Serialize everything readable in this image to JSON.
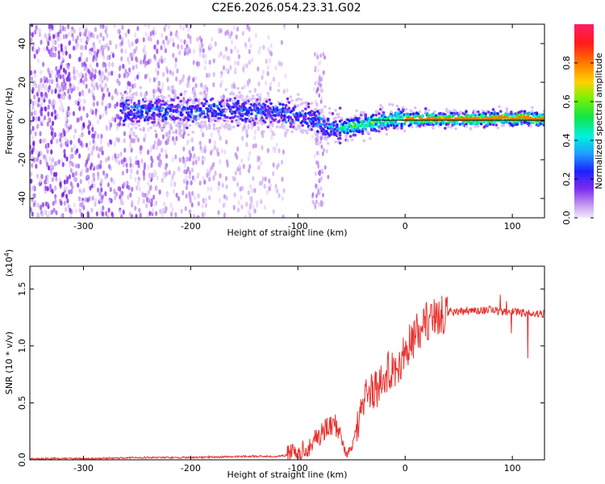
{
  "chart_data": [
    {
      "type": "heatmap",
      "title": "C2E6.2026.054.23.31.G02",
      "xlabel": "Height of straight line (km)",
      "ylabel": "Frequency (Hz)",
      "xlim": [
        -350,
        130
      ],
      "ylim": [
        -50,
        50
      ],
      "xticks": [
        -300,
        -200,
        -100,
        0,
        100
      ],
      "yticks": [
        -40,
        -20,
        0,
        20,
        40
      ],
      "ridge": {
        "x": [
          -265,
          -240,
          -220,
          -200,
          -180,
          -160,
          -140,
          -120,
          -100,
          -90,
          -80,
          -70,
          -60,
          -50,
          -40,
          -30,
          -20,
          -10,
          0,
          20,
          40,
          60,
          80,
          90,
          100,
          110,
          120,
          130
        ],
        "y": [
          5,
          5,
          5,
          5,
          5,
          5,
          5,
          5,
          3,
          1,
          -1,
          -3,
          -4,
          -3,
          -2,
          -1,
          0,
          1,
          1,
          1,
          1,
          1,
          1,
          2,
          1,
          2,
          1,
          1
        ]
      },
      "colorbar": {
        "label": "Normalized spectral amplitude",
        "ticks": [
          "0.0",
          "0.2",
          "0.4",
          "0.6",
          "0.8"
        ],
        "range": [
          0,
          1
        ]
      }
    },
    {
      "type": "line",
      "title": "",
      "xlabel": "Height of straight line (km)",
      "ylabel": "SNR (10 * v/v)",
      "multiplier": "(x10",
      "multiplier_exp": "4",
      "multiplier_close": ")",
      "xlim": [
        -350,
        130
      ],
      "ylim": [
        0,
        1.7
      ],
      "xticks": [
        -300,
        -200,
        -100,
        0,
        100
      ],
      "yticks": [
        "0.0",
        "0.5",
        "1.0",
        "1.5"
      ],
      "color": "#e8332f",
      "series": [
        {
          "name": "SNR",
          "x": [
            -350,
            -300,
            -250,
            -200,
            -150,
            -120,
            -100,
            -90,
            -85,
            -80,
            -75,
            -70,
            -65,
            -60,
            -55,
            -50,
            -45,
            -40,
            -35,
            -30,
            -25,
            -20,
            -15,
            -10,
            -5,
            0,
            10,
            20,
            30,
            40,
            50,
            60,
            70,
            80,
            90,
            100,
            110,
            120,
            130
          ],
          "y": [
            0.01,
            0.01,
            0.02,
            0.02,
            0.03,
            0.03,
            0.05,
            0.12,
            0.18,
            0.22,
            0.26,
            0.28,
            0.3,
            0.2,
            0.05,
            0.1,
            0.3,
            0.5,
            0.58,
            0.6,
            0.65,
            0.72,
            0.78,
            0.8,
            0.85,
            0.95,
            1.1,
            1.22,
            1.27,
            1.3,
            1.3,
            1.31,
            1.31,
            1.32,
            1.3,
            1.3,
            1.29,
            1.28,
            1.28
          ]
        }
      ]
    }
  ]
}
